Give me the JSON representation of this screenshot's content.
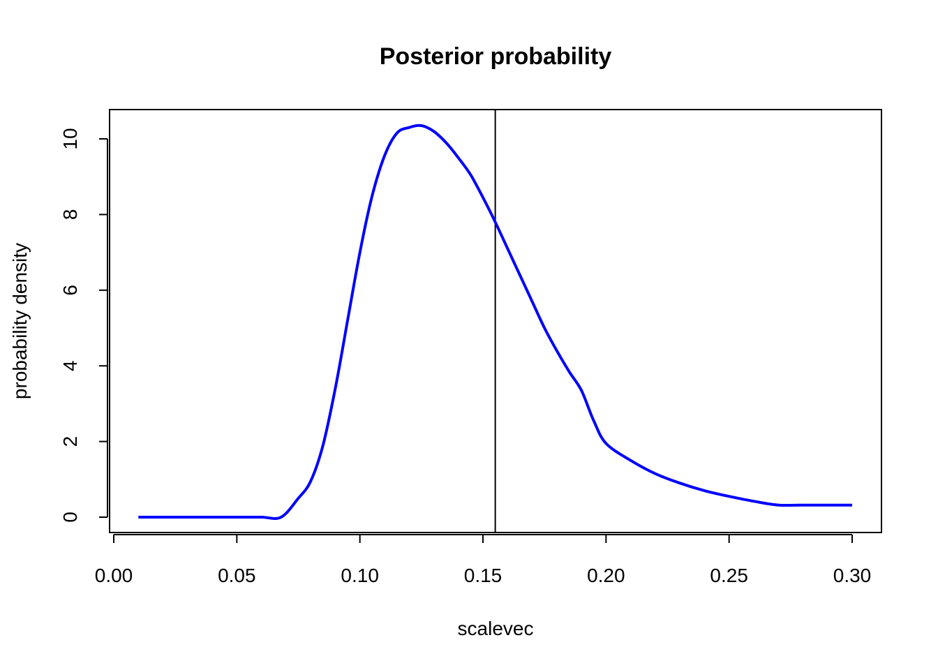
{
  "chart_data": {
    "type": "line",
    "title": "Posterior probability",
    "xlabel": "scalevec",
    "ylabel": "probability density",
    "xlim": [
      0.0,
      0.3
    ],
    "ylim": [
      0,
      10
    ],
    "x_ticks": [
      "0.00",
      "0.05",
      "0.10",
      "0.15",
      "0.20",
      "0.25",
      "0.30"
    ],
    "y_ticks": [
      "0",
      "2",
      "4",
      "6",
      "8",
      "10"
    ],
    "grid": false,
    "line_color": "#0000ff",
    "vline": {
      "x": 0.155,
      "color": "#000000"
    },
    "series": [
      {
        "x": [
          0.01,
          0.02,
          0.03,
          0.04,
          0.05,
          0.06,
          0.068,
          0.075,
          0.08,
          0.085,
          0.09,
          0.095,
          0.1,
          0.105,
          0.11,
          0.115,
          0.12,
          0.125,
          0.13,
          0.135,
          0.14,
          0.145,
          0.15,
          0.155,
          0.16,
          0.165,
          0.17,
          0.175,
          0.18,
          0.185,
          0.19,
          0.195,
          0.2,
          0.21,
          0.22,
          0.23,
          0.24,
          0.25,
          0.26,
          0.27,
          0.28,
          0.29,
          0.3
        ],
        "y": [
          0,
          0,
          0,
          0,
          0,
          0,
          0,
          0.5,
          0.95,
          1.9,
          3.4,
          5.2,
          7.0,
          8.5,
          9.55,
          10.15,
          10.3,
          10.35,
          10.2,
          9.9,
          9.5,
          9.05,
          8.45,
          7.8,
          7.1,
          6.4,
          5.7,
          5.0,
          4.4,
          3.85,
          3.35,
          2.55,
          1.95,
          1.5,
          1.15,
          0.9,
          0.7,
          0.55,
          0.42,
          0.32,
          0.32,
          0.32,
          0.32
        ]
      }
    ]
  }
}
